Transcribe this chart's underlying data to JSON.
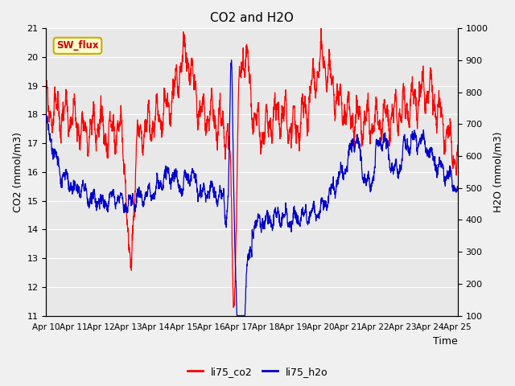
{
  "title": "CO2 and H2O",
  "xlabel": "Time",
  "ylabel_left": "CO2 (mmol/m3)",
  "ylabel_right": "H2O (mmol/m3)",
  "ylim_left": [
    11.0,
    21.0
  ],
  "ylim_right": [
    100,
    1000
  ],
  "yticks_left": [
    11.0,
    12.0,
    13.0,
    14.0,
    15.0,
    16.0,
    17.0,
    18.0,
    19.0,
    20.0,
    21.0
  ],
  "yticks_right": [
    100,
    200,
    300,
    400,
    500,
    600,
    700,
    800,
    900,
    1000
  ],
  "xtick_labels": [
    "Apr 10",
    "Apr 11",
    "Apr 12",
    "Apr 13",
    "Apr 14",
    "Apr 15",
    "Apr 16",
    "Apr 17",
    "Apr 18",
    "Apr 19",
    "Apr 20",
    "Apr 21",
    "Apr 22",
    "Apr 23",
    "Apr 24",
    "Apr 25"
  ],
  "color_co2": "#ff0000",
  "color_h2o": "#0000cc",
  "plot_bg": "#e8e8e8",
  "fig_bg": "#f0f0f0",
  "grid_color": "#ffffff",
  "annotation_text": "SW_flux",
  "annotation_bg": "#ffffcc",
  "annotation_border": "#ccaa00",
  "legend_labels": [
    "li75_co2",
    "li75_h2o"
  ]
}
